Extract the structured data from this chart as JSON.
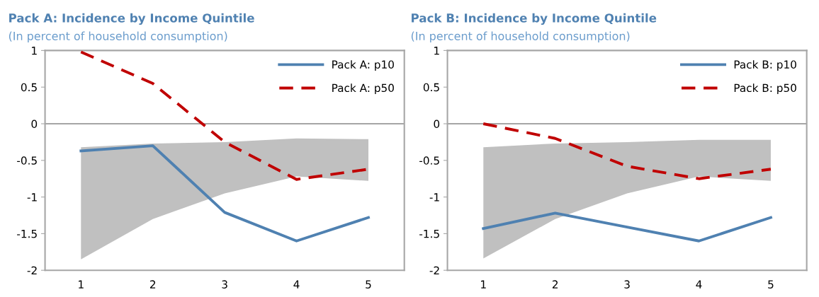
{
  "chart_data": [
    {
      "type": "line",
      "title": "Pack A: Incidence by Income Quintile",
      "subtitle": "(In percent of household consumption)",
      "categories": [
        "1",
        "2",
        "3",
        "4",
        "5"
      ],
      "ylim": [
        -2,
        1
      ],
      "yticks": [
        -2,
        -1.5,
        -1,
        -0.5,
        0,
        0.5,
        1
      ],
      "grid": false,
      "legend": "top right",
      "ref_lines": [
        {
          "axis": "y",
          "value": 0,
          "color": "#a6a6a6",
          "line_style": "solid"
        }
      ],
      "series": [
        {
          "type": "line",
          "color": "#c0c0c0",
          "values": [
            null,
            null,
            null,
            null,
            null
          ],
          "lower": [
            -1.85,
            -1.3,
            -0.95,
            -0.72,
            -0.78
          ],
          "upper": [
            -0.32,
            -0.27,
            -0.25,
            -0.2,
            -0.21
          ]
        },
        {
          "name": "Pack A: p10",
          "color": "#4f81b1",
          "line_style": "solid",
          "values": [
            -0.37,
            -0.3,
            -1.21,
            -1.6,
            -1.28
          ]
        },
        {
          "name": "Pack A: p50",
          "color": "#c00000",
          "line_style": "dashed",
          "values": [
            0.98,
            0.55,
            -0.25,
            -0.76,
            -0.62
          ]
        }
      ]
    },
    {
      "type": "line",
      "title": "Pack B: Incidence by Income Quintile",
      "subtitle": "(In percent of household consumption)",
      "categories": [
        "1",
        "2",
        "3",
        "4",
        "5"
      ],
      "ylim": [
        -2,
        1
      ],
      "yticks": [
        -2,
        -1.5,
        -1,
        -0.5,
        0,
        0.5,
        1
      ],
      "grid": false,
      "legend": "top right",
      "ref_lines": [
        {
          "axis": "y",
          "value": 0,
          "color": "#a6a6a6",
          "line_style": "solid"
        }
      ],
      "series": [
        {
          "type": "line",
          "color": "#c0c0c0",
          "values": [
            null,
            null,
            null,
            null,
            null
          ],
          "lower": [
            -1.84,
            -1.3,
            -0.95,
            -0.72,
            -0.78
          ],
          "upper": [
            -0.32,
            -0.27,
            -0.25,
            -0.22,
            -0.22
          ]
        },
        {
          "name": "Pack B: p10",
          "color": "#4f81b1",
          "line_style": "solid",
          "values": [
            -1.43,
            -1.22,
            -1.41,
            -1.6,
            -1.28
          ]
        },
        {
          "name": "Pack B: p50",
          "color": "#c00000",
          "line_style": "dashed",
          "values": [
            0,
            -0.2,
            -0.58,
            -0.75,
            -0.62
          ]
        }
      ]
    }
  ]
}
